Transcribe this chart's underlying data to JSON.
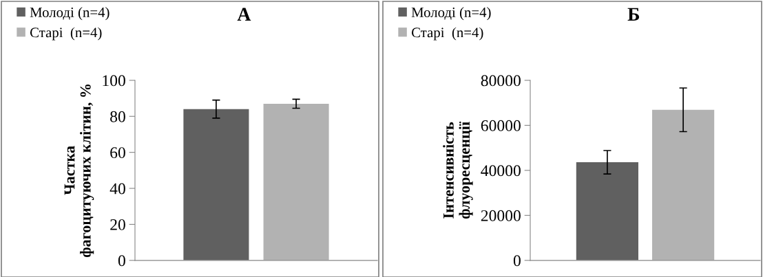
{
  "chart_data": [
    {
      "type": "bar",
      "title": "А",
      "ylabel": "Частка фагоцитуючих клітин, %",
      "categories": [
        null
      ],
      "ylim": [
        0,
        100
      ],
      "yticks": [
        0,
        20,
        40,
        60,
        80,
        100
      ],
      "grid": false,
      "legend": "top left",
      "series": [
        {
          "name": "Молоді (n=4)",
          "color": "#606060",
          "values": [
            84
          ],
          "errors": [
            5
          ]
        },
        {
          "name": "Старі  (n=4)",
          "color": "#b2b2b2",
          "values": [
            87
          ],
          "errors": [
            2.5
          ]
        }
      ]
    },
    {
      "type": "bar",
      "title": "Б",
      "ylabel": "Інтенсивність флуоресценції",
      "categories": [
        null
      ],
      "ylim": [
        0,
        80000
      ],
      "yticks": [
        0,
        20000,
        40000,
        60000,
        80000
      ],
      "grid": false,
      "legend": "top left",
      "series": [
        {
          "name": "Молоді (n=4)",
          "color": "#606060",
          "values": [
            43600
          ],
          "errors": [
            5200
          ]
        },
        {
          "name": "Старі  (n=4)",
          "color": "#b2b2b2",
          "values": [
            66900
          ],
          "errors": [
            9700
          ]
        }
      ]
    }
  ]
}
